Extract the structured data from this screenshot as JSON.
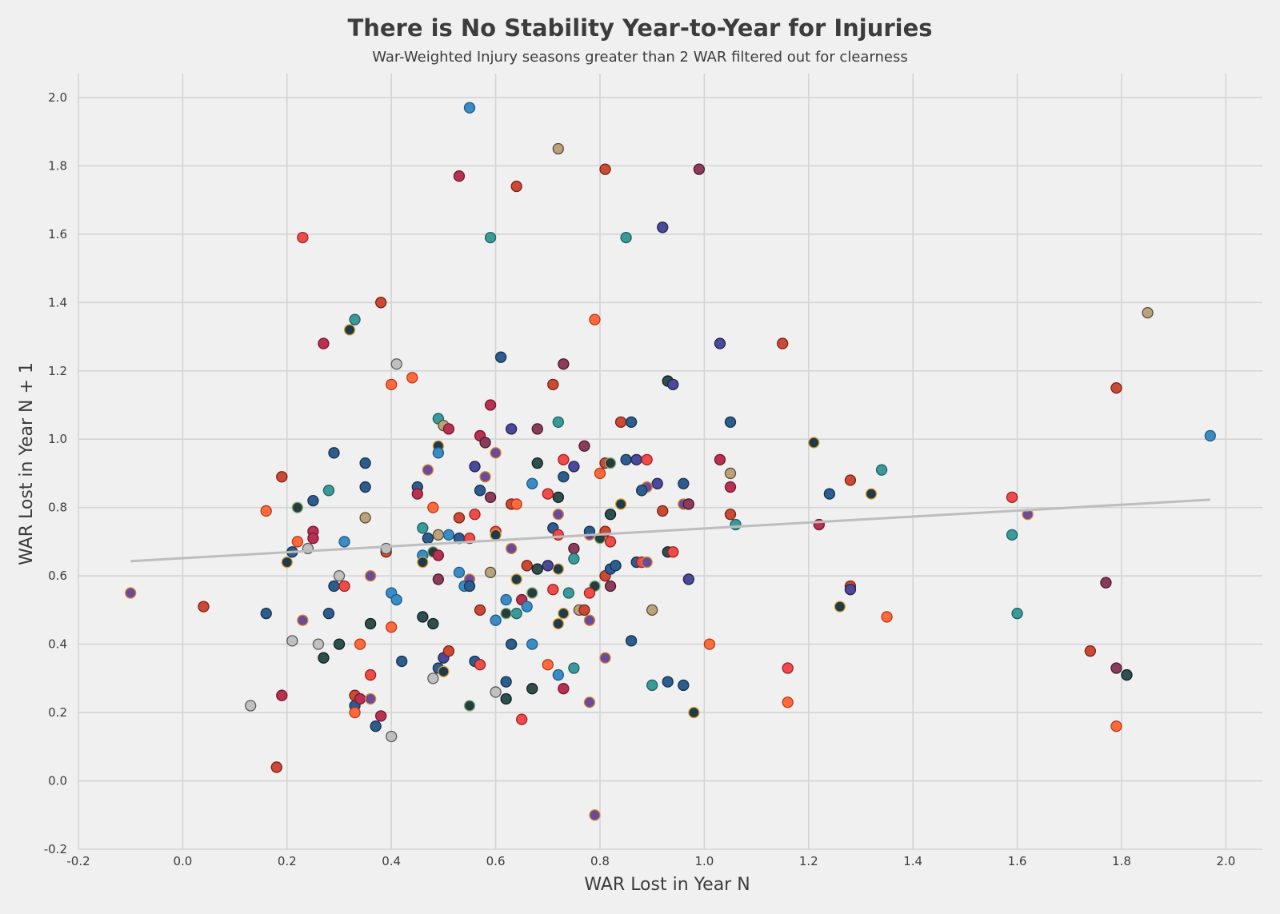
{
  "chart_data": {
    "type": "scatter",
    "title": "There is No Stability Year-to-Year for Injuries",
    "subtitle": "War-Weighted Injury seasons greater than 2 WAR filtered out for clearness",
    "xlabel": "WAR Lost in Year N",
    "ylabel": "WAR Lost in Year N + 1",
    "xlim": [
      -0.2,
      2.07
    ],
    "ylim": [
      -0.2,
      2.07
    ],
    "x_ticks": [
      "-0.2",
      "0.0",
      "0.2",
      "0.4",
      "0.6",
      "0.8",
      "1.0",
      "1.2",
      "1.4",
      "1.6",
      "1.8",
      "2.0"
    ],
    "y_ticks": [
      "-0.2",
      "0.0",
      "0.2",
      "0.4",
      "0.6",
      "0.8",
      "1.0",
      "1.2",
      "1.4",
      "1.6",
      "1.8",
      "2.0"
    ],
    "grid": true,
    "trendline": {
      "x": [
        -0.1,
        1.97
      ],
      "y": [
        0.643,
        0.823
      ],
      "color": "#bdbdbd"
    },
    "palette": [
      [
        "#b5334f",
        "#7a1230"
      ],
      [
        "#2d5d8c",
        "#16304d"
      ],
      [
        "#c94b35",
        "#7d1e12"
      ],
      [
        "#3a8cc4",
        "#1f5a85"
      ],
      [
        "#8a3c5a",
        "#4a1a2c"
      ],
      [
        "#4a4a9a",
        "#222250"
      ],
      [
        "#2f4f4f",
        "#101f1f"
      ],
      [
        "#ff6a3c",
        "#b53818"
      ],
      [
        "#3a9a9a",
        "#1e6060"
      ],
      [
        "#b9a27c",
        "#5c4c30"
      ],
      [
        "#c0c0c0",
        "#5a5a5a"
      ],
      [
        "#ef4b4b",
        "#a01f1f"
      ],
      [
        "#6a4a9a",
        "#d9882a"
      ],
      [
        "#1f3a4a",
        "#d9a02a"
      ],
      [
        "#283c3c",
        "#7ab07a"
      ]
    ],
    "points": [
      [
        0.55,
        1.97,
        3
      ],
      [
        0.72,
        1.85,
        9
      ],
      [
        0.81,
        1.79,
        2
      ],
      [
        0.99,
        1.79,
        4
      ],
      [
        0.53,
        1.77,
        0
      ],
      [
        0.64,
        1.74,
        2
      ],
      [
        0.23,
        1.59,
        11
      ],
      [
        0.59,
        1.59,
        8
      ],
      [
        0.85,
        1.59,
        8
      ],
      [
        0.92,
        1.62,
        5
      ],
      [
        0.38,
        1.4,
        2
      ],
      [
        0.33,
        1.35,
        8
      ],
      [
        0.32,
        1.32,
        13
      ],
      [
        0.27,
        1.28,
        0
      ],
      [
        0.79,
        1.35,
        7
      ],
      [
        1.03,
        1.28,
        5
      ],
      [
        1.15,
        1.28,
        2
      ],
      [
        1.85,
        1.37,
        9
      ],
      [
        0.41,
        1.22,
        10
      ],
      [
        0.61,
        1.24,
        1
      ],
      [
        0.73,
        1.22,
        4
      ],
      [
        0.4,
        1.16,
        7
      ],
      [
        0.44,
        1.18,
        7
      ],
      [
        0.71,
        1.16,
        2
      ],
      [
        0.93,
        1.17,
        6
      ],
      [
        0.94,
        1.16,
        5
      ],
      [
        1.79,
        1.15,
        2
      ],
      [
        0.59,
        1.1,
        0
      ],
      [
        0.49,
        1.06,
        8
      ],
      [
        0.5,
        1.04,
        9
      ],
      [
        0.51,
        1.03,
        0
      ],
      [
        0.63,
        1.03,
        5
      ],
      [
        0.68,
        1.03,
        4
      ],
      [
        0.72,
        1.05,
        8
      ],
      [
        0.84,
        1.05,
        2
      ],
      [
        0.86,
        1.05,
        1
      ],
      [
        1.05,
        1.05,
        1
      ],
      [
        1.97,
        1.01,
        3
      ],
      [
        0.57,
        1.01,
        0
      ],
      [
        0.58,
        0.99,
        4
      ],
      [
        0.49,
        0.98,
        13
      ],
      [
        0.49,
        0.96,
        3
      ],
      [
        0.6,
        0.96,
        12
      ],
      [
        0.77,
        0.98,
        4
      ],
      [
        0.29,
        0.96,
        1
      ],
      [
        1.21,
        0.99,
        13
      ],
      [
        0.35,
        0.93,
        1
      ],
      [
        0.68,
        0.93,
        6
      ],
      [
        0.73,
        0.94,
        11
      ],
      [
        0.81,
        0.93,
        2
      ],
      [
        0.82,
        0.93,
        14
      ],
      [
        0.85,
        0.94,
        1
      ],
      [
        0.87,
        0.94,
        5
      ],
      [
        0.89,
        0.94,
        11
      ],
      [
        1.03,
        0.94,
        0
      ],
      [
        0.56,
        0.92,
        5
      ],
      [
        0.47,
        0.91,
        12
      ],
      [
        0.75,
        0.92,
        5
      ],
      [
        0.19,
        0.89,
        2
      ],
      [
        0.58,
        0.89,
        12
      ],
      [
        0.73,
        0.89,
        1
      ],
      [
        0.8,
        0.9,
        7
      ],
      [
        1.05,
        0.9,
        9
      ],
      [
        1.28,
        0.88,
        2
      ],
      [
        1.34,
        0.91,
        8
      ],
      [
        0.67,
        0.87,
        3
      ],
      [
        0.91,
        0.87,
        5
      ],
      [
        0.96,
        0.87,
        1
      ],
      [
        0.35,
        0.86,
        1
      ],
      [
        0.45,
        0.86,
        1
      ],
      [
        0.57,
        0.85,
        1
      ],
      [
        0.89,
        0.86,
        12
      ],
      [
        1.05,
        0.86,
        0
      ],
      [
        0.28,
        0.85,
        8
      ],
      [
        0.25,
        0.82,
        1
      ],
      [
        0.45,
        0.84,
        0
      ],
      [
        0.59,
        0.83,
        4
      ],
      [
        0.72,
        0.83,
        6
      ],
      [
        0.7,
        0.84,
        11
      ],
      [
        0.88,
        0.85,
        1
      ],
      [
        1.24,
        0.84,
        1
      ],
      [
        1.32,
        0.84,
        13
      ],
      [
        1.59,
        0.83,
        11
      ],
      [
        0.63,
        0.81,
        2
      ],
      [
        0.64,
        0.81,
        7
      ],
      [
        0.84,
        0.81,
        13
      ],
      [
        0.96,
        0.81,
        12
      ],
      [
        0.97,
        0.81,
        4
      ],
      [
        0.16,
        0.79,
        7
      ],
      [
        0.22,
        0.8,
        14
      ],
      [
        0.48,
        0.8,
        7
      ],
      [
        0.72,
        0.78,
        12
      ],
      [
        0.82,
        0.78,
        6
      ],
      [
        0.92,
        0.79,
        2
      ],
      [
        1.05,
        0.78,
        2
      ],
      [
        1.62,
        0.78,
        12
      ],
      [
        0.35,
        0.77,
        9
      ],
      [
        0.53,
        0.77,
        2
      ],
      [
        0.56,
        0.78,
        11
      ],
      [
        0.25,
        0.73,
        0
      ],
      [
        0.25,
        0.71,
        0
      ],
      [
        0.22,
        0.7,
        7
      ],
      [
        0.31,
        0.7,
        3
      ],
      [
        0.46,
        0.74,
        8
      ],
      [
        0.47,
        0.71,
        1
      ],
      [
        0.49,
        0.72,
        9
      ],
      [
        0.51,
        0.72,
        3
      ],
      [
        0.53,
        0.71,
        1
      ],
      [
        0.55,
        0.71,
        11
      ],
      [
        0.6,
        0.73,
        11
      ],
      [
        0.6,
        0.72,
        13
      ],
      [
        0.71,
        0.74,
        1
      ],
      [
        0.72,
        0.72,
        11
      ],
      [
        0.75,
        0.68,
        4
      ],
      [
        0.78,
        0.72,
        12
      ],
      [
        0.78,
        0.73,
        1
      ],
      [
        0.8,
        0.71,
        14
      ],
      [
        0.81,
        0.73,
        2
      ],
      [
        0.82,
        0.7,
        11
      ],
      [
        1.06,
        0.75,
        8
      ],
      [
        1.22,
        0.75,
        0
      ],
      [
        1.59,
        0.72,
        8
      ],
      [
        0.21,
        0.67,
        1
      ],
      [
        0.24,
        0.68,
        10
      ],
      [
        0.39,
        0.67,
        2
      ],
      [
        0.39,
        0.68,
        10
      ],
      [
        0.46,
        0.66,
        3
      ],
      [
        0.48,
        0.67,
        14
      ],
      [
        0.49,
        0.66,
        0
      ],
      [
        0.63,
        0.68,
        12
      ],
      [
        0.66,
        0.63,
        2
      ],
      [
        0.68,
        0.62,
        6
      ],
      [
        0.7,
        0.63,
        5
      ],
      [
        0.72,
        0.62,
        13
      ],
      [
        0.75,
        0.65,
        8
      ],
      [
        0.87,
        0.64,
        1
      ],
      [
        0.88,
        0.64,
        11
      ],
      [
        0.89,
        0.64,
        12
      ],
      [
        0.93,
        0.67,
        6
      ],
      [
        0.94,
        0.67,
        11
      ],
      [
        0.2,
        0.64,
        13
      ],
      [
        0.46,
        0.64,
        13
      ],
      [
        0.53,
        0.61,
        3
      ],
      [
        0.55,
        0.59,
        12
      ],
      [
        0.59,
        0.61,
        9
      ],
      [
        0.64,
        0.59,
        13
      ],
      [
        0.81,
        0.6,
        2
      ],
      [
        0.82,
        0.62,
        1
      ],
      [
        0.83,
        0.63,
        1
      ],
      [
        0.97,
        0.59,
        5
      ],
      [
        0.29,
        0.57,
        1
      ],
      [
        0.3,
        0.6,
        10
      ],
      [
        0.31,
        0.57,
        11
      ],
      [
        0.36,
        0.6,
        12
      ],
      [
        0.49,
        0.59,
        4
      ],
      [
        0.54,
        0.57,
        3
      ],
      [
        0.55,
        0.57,
        1
      ],
      [
        0.67,
        0.55,
        13
      ],
      [
        0.67,
        0.55,
        14
      ],
      [
        0.71,
        0.56,
        11
      ],
      [
        0.79,
        0.57,
        14
      ],
      [
        0.82,
        0.57,
        4
      ],
      [
        1.28,
        0.57,
        2
      ],
      [
        1.28,
        0.56,
        5
      ],
      [
        1.77,
        0.58,
        4
      ],
      [
        -0.1,
        0.55,
        12
      ],
      [
        0.04,
        0.51,
        2
      ],
      [
        0.16,
        0.49,
        1
      ],
      [
        0.28,
        0.49,
        1
      ],
      [
        0.4,
        0.55,
        3
      ],
      [
        0.41,
        0.53,
        3
      ],
      [
        0.62,
        0.53,
        3
      ],
      [
        0.64,
        0.49,
        8
      ],
      [
        0.65,
        0.53,
        0
      ],
      [
        0.66,
        0.51,
        3
      ],
      [
        0.73,
        0.49,
        13
      ],
      [
        0.74,
        0.55,
        8
      ],
      [
        0.76,
        0.5,
        9
      ],
      [
        0.77,
        0.5,
        2
      ],
      [
        0.78,
        0.55,
        11
      ],
      [
        0.78,
        0.47,
        12
      ],
      [
        0.9,
        0.5,
        9
      ],
      [
        1.26,
        0.51,
        13
      ],
      [
        1.35,
        0.48,
        7
      ],
      [
        1.6,
        0.49,
        8
      ],
      [
        0.23,
        0.47,
        12
      ],
      [
        0.36,
        0.46,
        6
      ],
      [
        0.46,
        0.48,
        6
      ],
      [
        0.48,
        0.46,
        6
      ],
      [
        0.57,
        0.5,
        2
      ],
      [
        0.6,
        0.47,
        3
      ],
      [
        0.62,
        0.49,
        14
      ],
      [
        0.72,
        0.46,
        13
      ],
      [
        0.21,
        0.41,
        10
      ],
      [
        0.26,
        0.4,
        10
      ],
      [
        0.3,
        0.4,
        6
      ],
      [
        0.34,
        0.4,
        7
      ],
      [
        0.4,
        0.45,
        7
      ],
      [
        0.63,
        0.4,
        1
      ],
      [
        0.67,
        0.4,
        3
      ],
      [
        0.86,
        0.41,
        1
      ],
      [
        1.01,
        0.4,
        7
      ],
      [
        0.27,
        0.36,
        6
      ],
      [
        0.42,
        0.35,
        1
      ],
      [
        0.5,
        0.36,
        5
      ],
      [
        0.51,
        0.38,
        2
      ],
      [
        0.56,
        0.35,
        1
      ],
      [
        0.57,
        0.34,
        11
      ],
      [
        0.7,
        0.34,
        7
      ],
      [
        0.81,
        0.36,
        12
      ],
      [
        1.74,
        0.38,
        2
      ],
      [
        0.36,
        0.31,
        11
      ],
      [
        0.48,
        0.3,
        10
      ],
      [
        0.49,
        0.33,
        1
      ],
      [
        0.5,
        0.32,
        13
      ],
      [
        0.62,
        0.29,
        1
      ],
      [
        0.72,
        0.31,
        3
      ],
      [
        0.75,
        0.33,
        8
      ],
      [
        0.9,
        0.28,
        8
      ],
      [
        0.93,
        0.29,
        1
      ],
      [
        0.96,
        0.28,
        1
      ],
      [
        1.16,
        0.33,
        11
      ],
      [
        1.79,
        0.33,
        4
      ],
      [
        1.81,
        0.31,
        6
      ],
      [
        0.19,
        0.25,
        0
      ],
      [
        0.33,
        0.22,
        1
      ],
      [
        0.33,
        0.25,
        2
      ],
      [
        0.34,
        0.24,
        0
      ],
      [
        0.36,
        0.24,
        12
      ],
      [
        0.6,
        0.26,
        10
      ],
      [
        0.62,
        0.24,
        6
      ],
      [
        0.67,
        0.27,
        6
      ],
      [
        0.73,
        0.27,
        0
      ],
      [
        0.13,
        0.22,
        10
      ],
      [
        0.55,
        0.22,
        14
      ],
      [
        0.78,
        0.23,
        12
      ],
      [
        0.33,
        0.2,
        7
      ],
      [
        0.38,
        0.19,
        0
      ],
      [
        0.37,
        0.16,
        1
      ],
      [
        0.65,
        0.18,
        11
      ],
      [
        0.98,
        0.2,
        13
      ],
      [
        1.16,
        0.23,
        7
      ],
      [
        1.79,
        0.16,
        7
      ],
      [
        0.4,
        0.13,
        10
      ],
      [
        0.18,
        0.04,
        2
      ],
      [
        0.79,
        -0.1,
        12
      ]
    ]
  }
}
